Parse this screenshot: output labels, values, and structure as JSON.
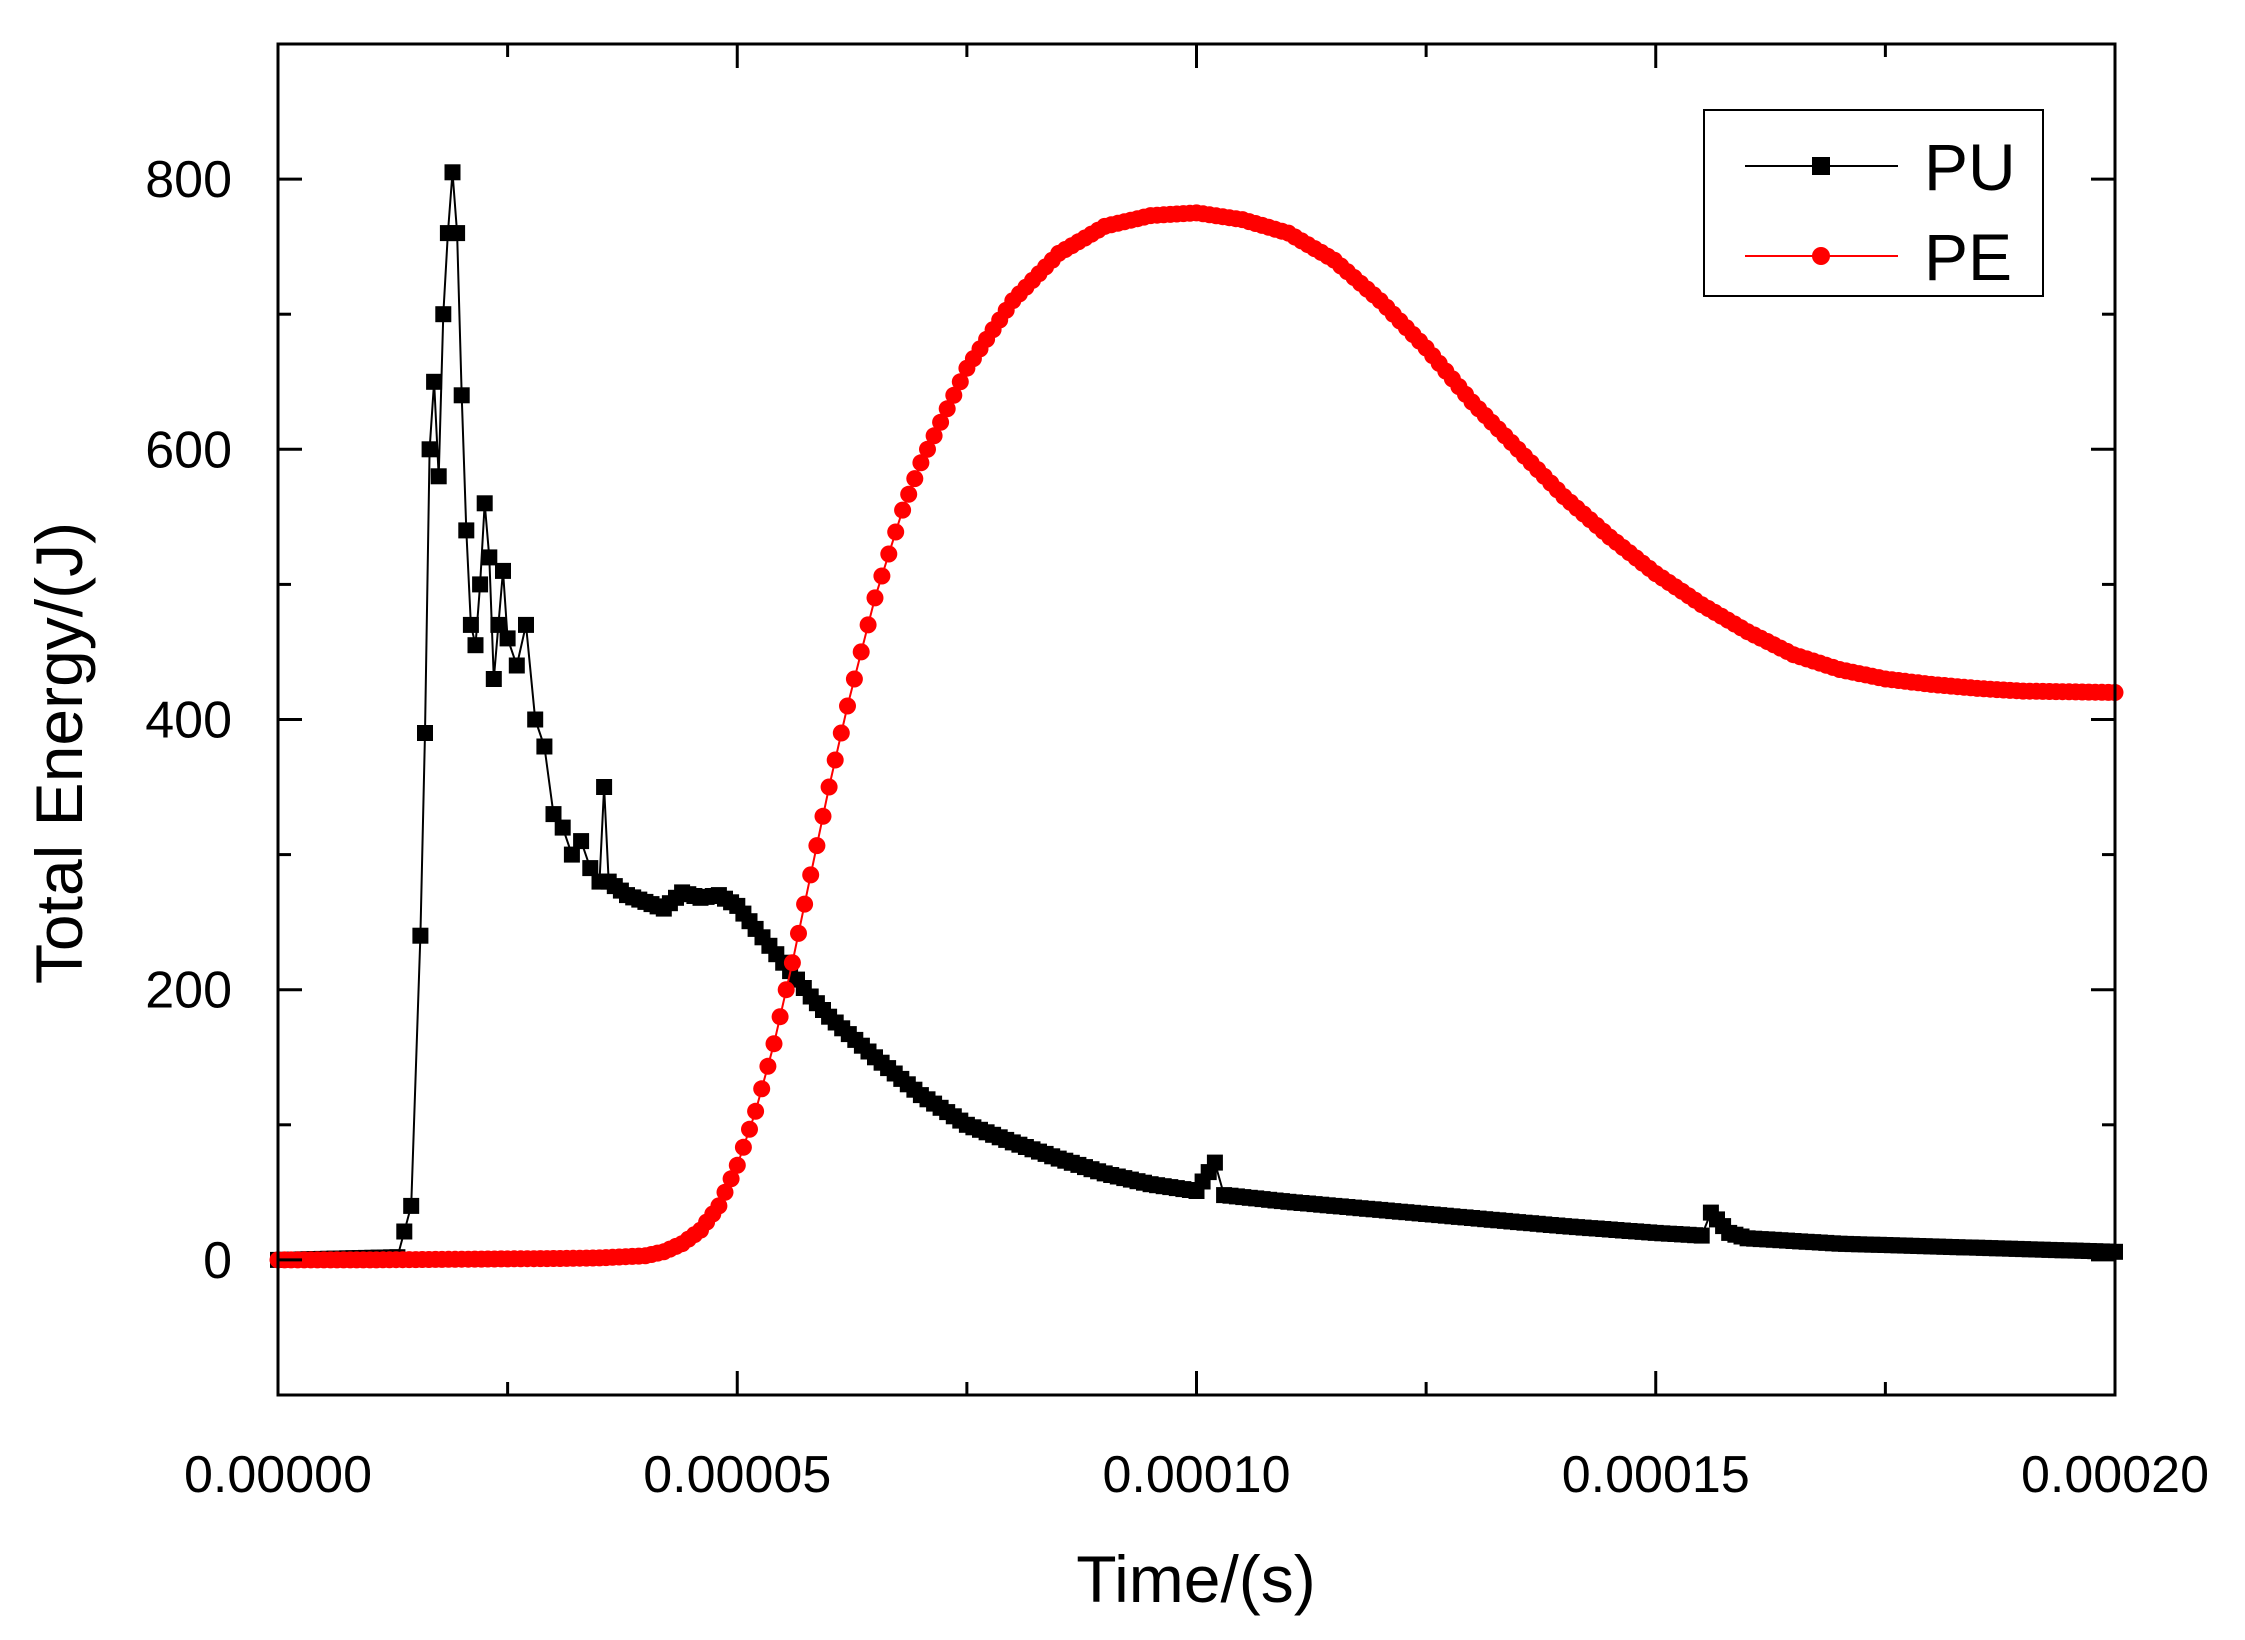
{
  "chart_data": {
    "type": "scatter",
    "title": "",
    "xlabel": "Time/(s)",
    "ylabel": "Total Energy/(J)",
    "xlim": [
      0,
      0.0002
    ],
    "ylim": [
      -100,
      900
    ],
    "grid": false,
    "legend_position": "top-right",
    "x_ticks": [
      0,
      5e-05,
      0.0001,
      0.00015,
      0.0002
    ],
    "x_tick_labels": [
      "0.00000",
      "0.00005",
      "0.00010",
      "0.00015",
      "0.00020"
    ],
    "y_ticks": [
      0,
      200,
      400,
      600,
      800
    ],
    "y_tick_labels": [
      "0",
      "200",
      "400",
      "600",
      "800"
    ],
    "series": [
      {
        "name": "PU",
        "color": "#000000",
        "marker": "square",
        "points": [
          [
            0,
            0
          ],
          [
            1.3e-05,
            2
          ],
          [
            1.45e-05,
            40
          ],
          [
            1.55e-05,
            240
          ],
          [
            1.6e-05,
            390
          ],
          [
            1.65e-05,
            600
          ],
          [
            1.7e-05,
            650
          ],
          [
            1.75e-05,
            580
          ],
          [
            1.8e-05,
            700
          ],
          [
            1.85e-05,
            760
          ],
          [
            1.9e-05,
            805
          ],
          [
            1.95e-05,
            760
          ],
          [
            2e-05,
            640
          ],
          [
            2.05e-05,
            540
          ],
          [
            2.1e-05,
            470
          ],
          [
            2.15e-05,
            455
          ],
          [
            2.2e-05,
            500
          ],
          [
            2.25e-05,
            560
          ],
          [
            2.3e-05,
            520
          ],
          [
            2.35e-05,
            430
          ],
          [
            2.4e-05,
            470
          ],
          [
            2.45e-05,
            510
          ],
          [
            2.5e-05,
            460
          ],
          [
            2.6e-05,
            440
          ],
          [
            2.7e-05,
            470
          ],
          [
            2.8e-05,
            400
          ],
          [
            2.9e-05,
            380
          ],
          [
            3e-05,
            330
          ],
          [
            3.1e-05,
            320
          ],
          [
            3.2e-05,
            300
          ],
          [
            3.3e-05,
            310
          ],
          [
            3.4e-05,
            290
          ],
          [
            3.5e-05,
            280
          ],
          [
            3.55e-05,
            350
          ],
          [
            3.6e-05,
            280
          ],
          [
            3.8e-05,
            270
          ],
          [
            4e-05,
            265
          ],
          [
            4.2e-05,
            260
          ],
          [
            4.4e-05,
            272
          ],
          [
            4.6e-05,
            268
          ],
          [
            4.8e-05,
            270
          ],
          [
            5e-05,
            262
          ],
          [
            5.2e-05,
            245
          ],
          [
            5.5e-05,
            220
          ],
          [
            5.8e-05,
            195
          ],
          [
            6e-05,
            180
          ],
          [
            6.5e-05,
            150
          ],
          [
            7e-05,
            122
          ],
          [
            7.5e-05,
            100
          ],
          [
            8e-05,
            87
          ],
          [
            8.5e-05,
            75
          ],
          [
            9e-05,
            64
          ],
          [
            9.5e-05,
            56
          ],
          [
            0.0001,
            51
          ],
          [
            0.000102,
            72
          ],
          [
            0.000103,
            48
          ],
          [
            0.00011,
            43
          ],
          [
            0.00012,
            37
          ],
          [
            0.00013,
            31
          ],
          [
            0.00014,
            25
          ],
          [
            0.00015,
            20
          ],
          [
            0.000155,
            18
          ],
          [
            0.000156,
            35
          ],
          [
            0.000158,
            20
          ],
          [
            0.00016,
            16
          ],
          [
            0.00017,
            12
          ],
          [
            0.00018,
            10
          ],
          [
            0.00019,
            8
          ],
          [
            0.0002,
            6
          ]
        ]
      },
      {
        "name": "PE",
        "color": "#ff0000",
        "marker": "circle",
        "points": [
          [
            0,
            0
          ],
          [
            1e-05,
            0
          ],
          [
            2e-05,
            0.5
          ],
          [
            3e-05,
            1
          ],
          [
            3.5e-05,
            1.5
          ],
          [
            4e-05,
            3
          ],
          [
            4.2e-05,
            6
          ],
          [
            4.4e-05,
            12
          ],
          [
            4.6e-05,
            22
          ],
          [
            4.8e-05,
            40
          ],
          [
            5e-05,
            70
          ],
          [
            5.2e-05,
            110
          ],
          [
            5.4e-05,
            160
          ],
          [
            5.6e-05,
            220
          ],
          [
            5.8e-05,
            285
          ],
          [
            6e-05,
            350
          ],
          [
            6.2e-05,
            410
          ],
          [
            6.5e-05,
            490
          ],
          [
            6.8e-05,
            555
          ],
          [
            7e-05,
            590
          ],
          [
            7.5e-05,
            660
          ],
          [
            8e-05,
            710
          ],
          [
            8.5e-05,
            745
          ],
          [
            9e-05,
            765
          ],
          [
            9.5e-05,
            773
          ],
          [
            0.0001,
            775
          ],
          [
            0.000105,
            770
          ],
          [
            0.00011,
            760
          ],
          [
            0.000115,
            740
          ],
          [
            0.00012,
            710
          ],
          [
            0.000125,
            675
          ],
          [
            0.00013,
            635
          ],
          [
            0.000135,
            600
          ],
          [
            0.00014,
            565
          ],
          [
            0.000145,
            535
          ],
          [
            0.00015,
            508
          ],
          [
            0.000155,
            485
          ],
          [
            0.00016,
            465
          ],
          [
            0.000165,
            448
          ],
          [
            0.00017,
            437
          ],
          [
            0.000175,
            430
          ],
          [
            0.00018,
            426
          ],
          [
            0.000185,
            423
          ],
          [
            0.00019,
            421
          ],
          [
            0.0002,
            420
          ]
        ]
      }
    ]
  }
}
